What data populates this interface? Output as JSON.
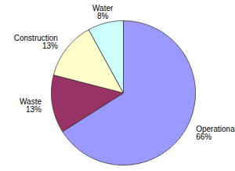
{
  "chart_data": {
    "type": "pie",
    "categories": [
      "Operational",
      "Waste",
      "Construction",
      "Water"
    ],
    "values": [
      66,
      13,
      13,
      8
    ],
    "value_labels": [
      "66%",
      "13%",
      "13%",
      "8%"
    ],
    "colors": [
      "#9999FF",
      "#993366",
      "#FFFFCC",
      "#CCFFFF"
    ],
    "data_labels": true
  }
}
